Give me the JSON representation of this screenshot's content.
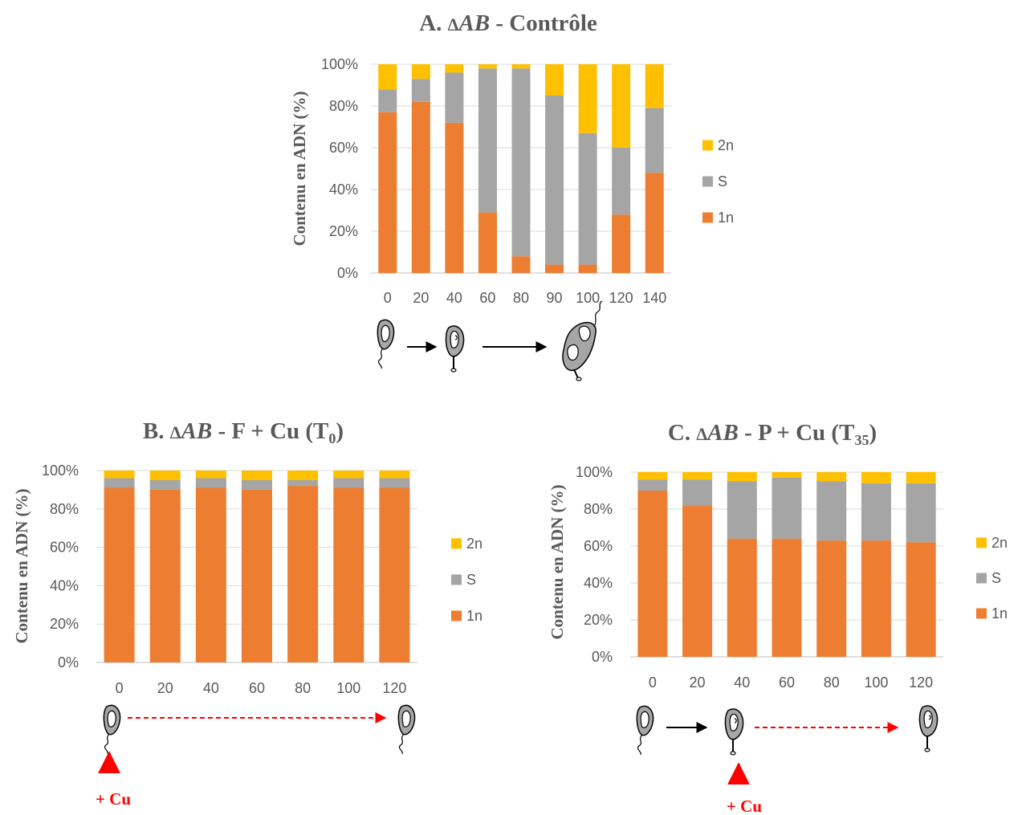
{
  "chart_data": [
    {
      "type": "bar",
      "stacked": true,
      "title_letter": "A.",
      "title_delta": "Δ",
      "title_gene": "AB",
      "title_rest": " - Contrôle",
      "ylabel": "Contenu en ADN (%)",
      "yticks": [
        "0%",
        "20%",
        "40%",
        "60%",
        "80%",
        "100%"
      ],
      "ylim": [
        0,
        100
      ],
      "categories": [
        "0",
        "20",
        "40",
        "60",
        "80",
        "90",
        "100",
        "120",
        "140"
      ],
      "series": [
        {
          "name": "1n",
          "color": "#ed7d31",
          "values": [
            77,
            82,
            72,
            29,
            8,
            4,
            4,
            28,
            48
          ]
        },
        {
          "name": "S",
          "color": "#a5a5a5",
          "values": [
            11,
            11,
            24,
            69,
            90,
            81,
            63,
            32,
            31
          ]
        },
        {
          "name": "2n",
          "color": "#ffc000",
          "values": [
            12,
            7,
            4,
            2,
            2,
            15,
            33,
            40,
            21
          ]
        }
      ],
      "legend_position": "right",
      "grid": true
    },
    {
      "type": "bar",
      "stacked": true,
      "title_letter": "B.",
      "title_delta": "Δ",
      "title_gene": "AB",
      "title_rest": " - F + Cu (T",
      "title_sub": "0",
      "title_end": ")",
      "ylabel": "Contenu en ADN (%)",
      "yticks": [
        "0%",
        "20%",
        "40%",
        "60%",
        "80%",
        "100%"
      ],
      "ylim": [
        0,
        100
      ],
      "categories": [
        "0",
        "20",
        "40",
        "60",
        "80",
        "100",
        "120"
      ],
      "series": [
        {
          "name": "1n",
          "color": "#ed7d31",
          "values": [
            91,
            90,
            91,
            90,
            92,
            91,
            91
          ]
        },
        {
          "name": "S",
          "color": "#a5a5a5",
          "values": [
            5,
            5,
            5,
            5,
            3,
            5,
            5
          ]
        },
        {
          "name": "2n",
          "color": "#ffc000",
          "values": [
            4,
            5,
            4,
            5,
            5,
            4,
            4
          ]
        }
      ],
      "legend_position": "right",
      "grid": true,
      "annotation": "+ Cu"
    },
    {
      "type": "bar",
      "stacked": true,
      "title_letter": "C.",
      "title_delta": "Δ",
      "title_gene": "AB",
      "title_rest": " - P + Cu (T",
      "title_sub": "35",
      "title_end": ")",
      "ylabel": "Contenu en ADN (%)",
      "yticks": [
        "0%",
        "20%",
        "40%",
        "60%",
        "80%",
        "100%"
      ],
      "ylim": [
        0,
        100
      ],
      "categories": [
        "0",
        "20",
        "40",
        "60",
        "80",
        "100",
        "120"
      ],
      "series": [
        {
          "name": "1n",
          "color": "#ed7d31",
          "values": [
            90,
            82,
            64,
            64,
            63,
            63,
            62
          ]
        },
        {
          "name": "S",
          "color": "#a5a5a5",
          "values": [
            6,
            14,
            31,
            33,
            32,
            31,
            32
          ]
        },
        {
          "name": "2n",
          "color": "#ffc000",
          "values": [
            4,
            4,
            5,
            3,
            5,
            6,
            6
          ]
        }
      ],
      "legend_position": "right",
      "grid": true,
      "annotation": "+ Cu"
    }
  ]
}
